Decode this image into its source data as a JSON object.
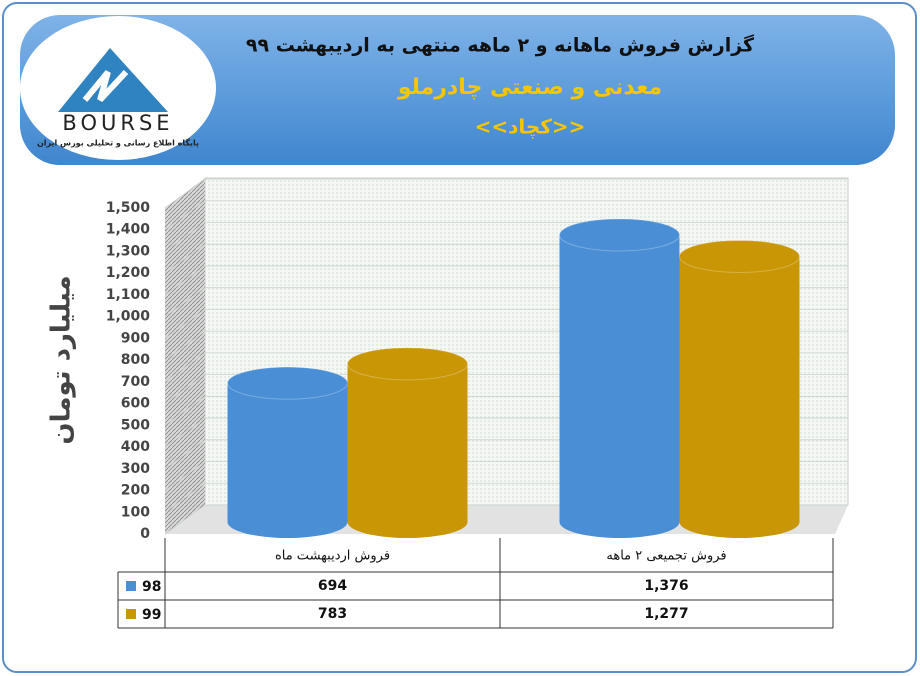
{
  "header": {
    "logo_text": "BOURSE",
    "logo_caption": "پایگاه اطلاع رسانی و تحلیلی بورس ایران"
  },
  "chart_data": {
    "type": "bar",
    "title": "گزارش فروش ماهانه و ۲ ماهه منتهی به اردیبهشت ۹۹",
    "subtitle": "معدنی و صنعتی چادرملو",
    "symbol": "<<کچاد>>",
    "y_label": "میلیارد تومان",
    "categories": [
      "فروش اردیبهشت ماه",
      "فروش تجمیعی ۲ ماهه"
    ],
    "series": [
      {
        "name": "98",
        "color": "#4a8fd6",
        "values": [
          694,
          1376
        ],
        "value_labels": [
          "694",
          "1,376"
        ]
      },
      {
        "name": "99",
        "color": "#c99606",
        "values": [
          783,
          1277
        ],
        "value_labels": [
          "783",
          "1,277"
        ]
      }
    ],
    "ylim": [
      0,
      1500
    ],
    "yticks": [
      0,
      100,
      200,
      300,
      400,
      500,
      600,
      700,
      800,
      900,
      {
        "value": 1000,
        "label": "1,000"
      },
      {
        "value": 1100,
        "label": "1,100"
      },
      {
        "value": 1200,
        "label": "1,200"
      },
      {
        "value": 1300,
        "label": "1,300"
      },
      {
        "value": 1400,
        "label": "1,400"
      },
      {
        "value": 1500,
        "label": "1,500"
      }
    ],
    "grid": true
  }
}
